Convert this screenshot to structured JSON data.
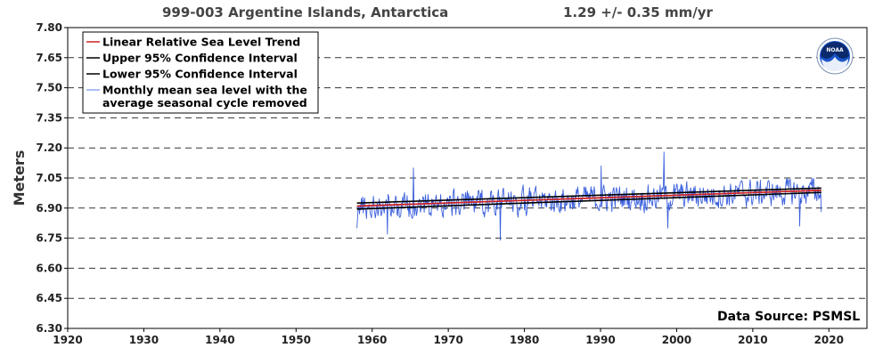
{
  "chart_data": {
    "type": "line",
    "title": "999-003 Argentine Islands, Antarctica",
    "trend_label": "1.29 +/-  0.35 mm/yr",
    "xlabel": "",
    "ylabel": "Meters",
    "xlim": [
      1920,
      2025
    ],
    "ylim": [
      6.3,
      7.8
    ],
    "x_ticks": [
      "1920",
      "1930",
      "1940",
      "1950",
      "1960",
      "1970",
      "1980",
      "1990",
      "2000",
      "2010",
      "2020"
    ],
    "y_ticks": [
      "7.80",
      "7.65",
      "7.50",
      "7.35",
      "7.20",
      "7.05",
      "6.90",
      "6.75",
      "6.60",
      "6.45",
      "6.30"
    ],
    "grid": "horizontal dashed",
    "legend_position": "top-left",
    "source_text": "Data Source: PSMSL",
    "logo_text": "NOAA",
    "series": [
      {
        "name": "Linear Relative Sea Level Trend",
        "color": "#cc2222",
        "x": [
          1958.0,
          2019.0
        ],
        "y": [
          6.91,
          6.9887
        ]
      },
      {
        "name": "Upper 95% Confidence Interval",
        "color": "#000000",
        "x": [
          1958.0,
          2019.0
        ],
        "y": [
          6.925,
          7.0
        ]
      },
      {
        "name": "Lower 95% Confidence Interval",
        "color": "#000000",
        "x": [
          1958.0,
          2019.0
        ],
        "y": [
          6.895,
          6.978
        ]
      },
      {
        "name": "Monthly mean sea level with the average seasonal cycle removed",
        "legend_lines": [
          "Monthly mean sea level with the",
          "average seasonal cycle removed"
        ],
        "color": "#3a5fdc",
        "x_start": 1958.0,
        "x_end": 2019.0,
        "y_start": 6.905,
        "y_end": 6.985,
        "noise_amplitude": 0.07,
        "notable_points": [
          {
            "x": 1958.0,
            "y": 6.8
          },
          {
            "x": 1962.0,
            "y": 6.77
          },
          {
            "x": 1965.4,
            "y": 7.1
          },
          {
            "x": 1976.8,
            "y": 6.74
          },
          {
            "x": 1990.1,
            "y": 7.11
          },
          {
            "x": 1998.3,
            "y": 7.18
          },
          {
            "x": 1998.8,
            "y": 6.8
          },
          {
            "x": 2016.2,
            "y": 6.81
          },
          {
            "x": 2019.0,
            "y": 6.88
          }
        ]
      }
    ]
  }
}
